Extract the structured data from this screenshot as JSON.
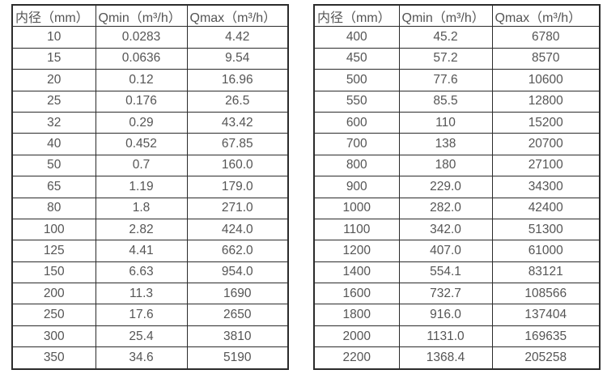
{
  "colors": {
    "border": "#2b2b2b",
    "text": "#555555",
    "background": "#ffffff"
  },
  "tables": [
    {
      "name": "flow-table-small-diameter",
      "headers": [
        "内径（mm）",
        "Qmin（m³/h）",
        "Qmax（m³/h）"
      ],
      "rows": [
        [
          "10",
          "0.0283",
          "4.42"
        ],
        [
          "15",
          "0.0636",
          "9.54"
        ],
        [
          "20",
          "0.12",
          "16.96"
        ],
        [
          "25",
          "0.176",
          "26.5"
        ],
        [
          "32",
          "0.29",
          "43.42"
        ],
        [
          "40",
          "0.452",
          "67.85"
        ],
        [
          "50",
          "0.7",
          "160.0"
        ],
        [
          "65",
          "1.19",
          "179.0"
        ],
        [
          "80",
          "1.8",
          "271.0"
        ],
        [
          "100",
          "2.82",
          "424.0"
        ],
        [
          "125",
          "4.41",
          "662.0"
        ],
        [
          "150",
          "6.63",
          "954.0"
        ],
        [
          "200",
          "11.3",
          "1690"
        ],
        [
          "250",
          "17.6",
          "2650"
        ],
        [
          "300",
          "25.4",
          "3810"
        ],
        [
          "350",
          "34.6",
          "5190"
        ]
      ]
    },
    {
      "name": "flow-table-large-diameter",
      "headers": [
        "内径（mm）",
        "Qmin（m³/h）",
        "Qmax（m³/h）"
      ],
      "rows": [
        [
          "400",
          "45.2",
          "6780"
        ],
        [
          "450",
          "57.2",
          "8570"
        ],
        [
          "500",
          "77.6",
          "10600"
        ],
        [
          "550",
          "85.5",
          "12800"
        ],
        [
          "600",
          "110",
          "15200"
        ],
        [
          "700",
          "138",
          "20700"
        ],
        [
          "800",
          "180",
          "27100"
        ],
        [
          "900",
          "229.0",
          "34300"
        ],
        [
          "1000",
          "282.0",
          "42400"
        ],
        [
          "1100",
          "342.0",
          "51300"
        ],
        [
          "1200",
          "407.0",
          "61000"
        ],
        [
          "1400",
          "554.1",
          "83121"
        ],
        [
          "1600",
          "732.7",
          "108566"
        ],
        [
          "1800",
          "916.0",
          "137404"
        ],
        [
          "2000",
          "1131.0",
          "169635"
        ],
        [
          "2200",
          "1368.4",
          "205258"
        ]
      ]
    }
  ]
}
